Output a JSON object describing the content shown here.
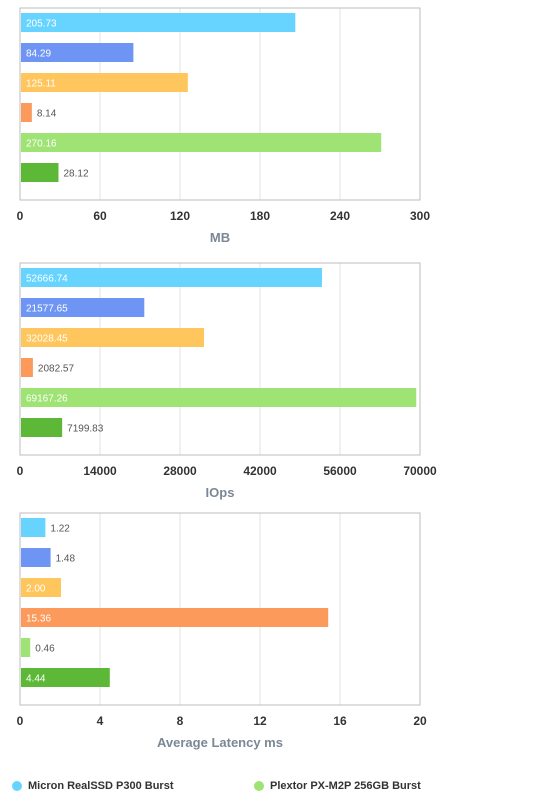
{
  "chart_data": [
    {
      "type": "bar",
      "orientation": "horizontal",
      "xlabel": "MB",
      "xlim": [
        0,
        300
      ],
      "xticks": [
        "0",
        "60",
        "120",
        "180",
        "240",
        "300"
      ],
      "grid": true,
      "values": [
        205.73,
        84.29,
        125.11,
        8.14,
        270.16,
        28.12
      ],
      "labels": [
        "205.73",
        "84.29",
        "125.11",
        "8.14",
        "270.16",
        "28.12"
      ],
      "colors": [
        "#66d4ff",
        "#6e95f3",
        "#ffc65e",
        "#fb9a5a",
        "#9ee373",
        "#5db837"
      ]
    },
    {
      "type": "bar",
      "orientation": "horizontal",
      "xlabel": "IOps",
      "xlim": [
        0,
        70000
      ],
      "xticks": [
        "0",
        "14000",
        "28000",
        "42000",
        "56000",
        "70000"
      ],
      "grid": true,
      "values": [
        52666.74,
        21577.65,
        32028.45,
        2082.57,
        69167.26,
        7199.83
      ],
      "labels": [
        "52666.74",
        "21577.65",
        "32028.45",
        "2082.57",
        "69167.26",
        "7199.83"
      ],
      "colors": [
        "#66d4ff",
        "#6e95f3",
        "#ffc65e",
        "#fb9a5a",
        "#9ee373",
        "#5db837"
      ]
    },
    {
      "type": "bar",
      "orientation": "horizontal",
      "xlabel": "Average Latency ms",
      "xlim": [
        0,
        20
      ],
      "xticks": [
        "0",
        "4",
        "8",
        "12",
        "16",
        "20"
      ],
      "grid": true,
      "values": [
        1.22,
        1.48,
        2.0,
        15.36,
        0.46,
        4.44
      ],
      "labels": [
        "1.22",
        "1.48",
        "2.00",
        "15.36",
        "0.46",
        "4.44"
      ],
      "colors": [
        "#66d4ff",
        "#6e95f3",
        "#ffc65e",
        "#fb9a5a",
        "#9ee373",
        "#5db837"
      ]
    }
  ],
  "legend": {
    "placement": "bottom",
    "items": [
      {
        "label": "Micron RealSSD P300 Burst",
        "color": "#66d4ff"
      },
      {
        "label": "Plextor PX-M2P 256GB Burst",
        "color": "#9ee373"
      }
    ]
  }
}
